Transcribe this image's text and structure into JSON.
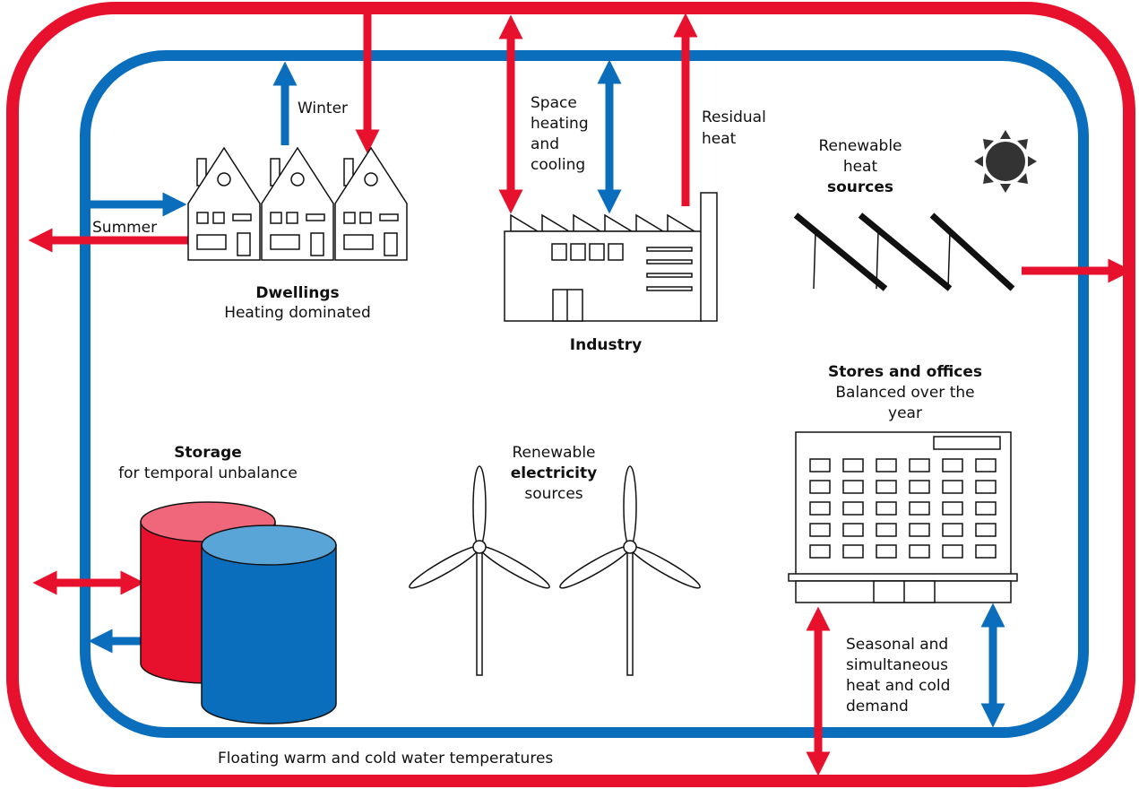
{
  "flows": {
    "winter": "Winter",
    "summer": "Summer",
    "space_heating": [
      "Space",
      "heating",
      "and",
      "cooling"
    ],
    "residual_heat": [
      "Residual",
      "heat"
    ],
    "seasonal": [
      "Seasonal and",
      "simultaneous",
      "heat and cold",
      "demand"
    ]
  },
  "nodes": {
    "dwellings": {
      "title": "Dwellings",
      "subtitle": "Heating dominated"
    },
    "industry": {
      "title": "Industry"
    },
    "heat_sources": {
      "lines": [
        "Renewable",
        "heat",
        "sources"
      ]
    },
    "stores": {
      "title": "Stores and offices",
      "subtitle": [
        "Balanced over the",
        "year"
      ]
    },
    "storage": {
      "title": "Storage",
      "subtitle": "for temporal unbalance"
    },
    "electricity_sources": {
      "lines": [
        "Renewable",
        "electricity",
        "sources"
      ]
    }
  },
  "caption": "Floating warm and cold water temperatures"
}
